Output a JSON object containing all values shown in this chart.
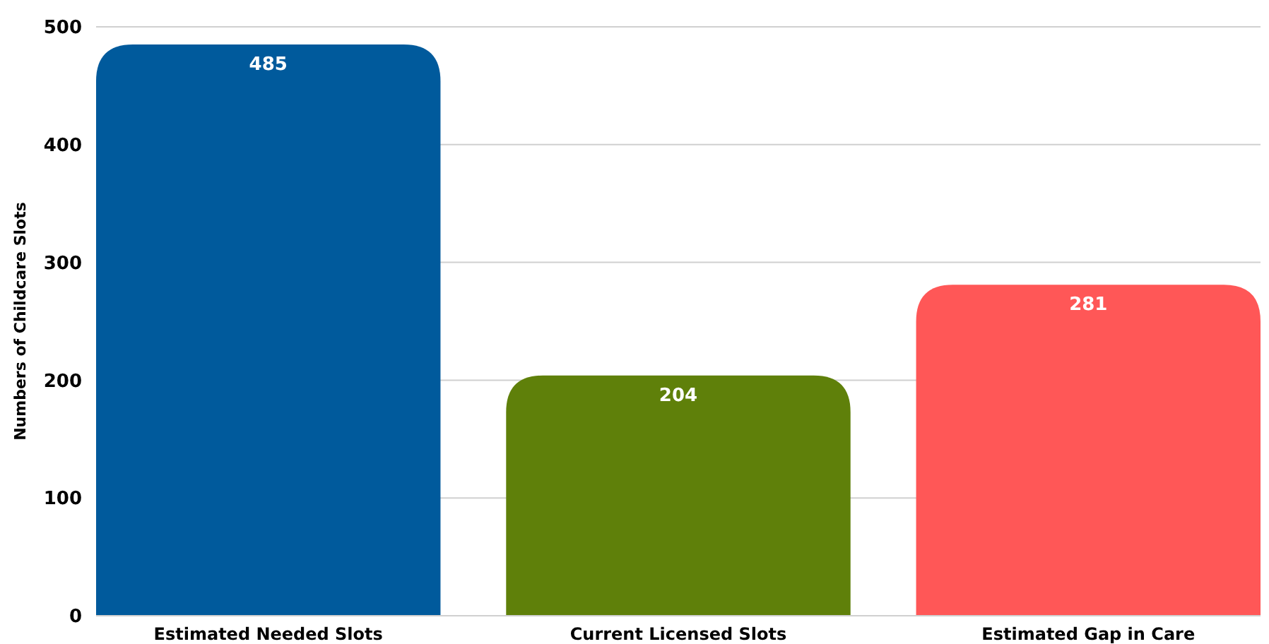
{
  "chart_data": {
    "type": "bar",
    "ylabel": "Numbers of Childcare Slots",
    "categories": [
      "Estimated Needed Slots",
      "Current Licensed Slots",
      "Estimated Gap in Care"
    ],
    "values": [
      485,
      204,
      281
    ],
    "colors": [
      "#005a9c",
      "#5f800a",
      "#ff5757"
    ],
    "ylim": [
      0,
      500
    ],
    "yticks": [
      0,
      100,
      200,
      300,
      400,
      500
    ],
    "grid": "y",
    "data_labels": true
  }
}
